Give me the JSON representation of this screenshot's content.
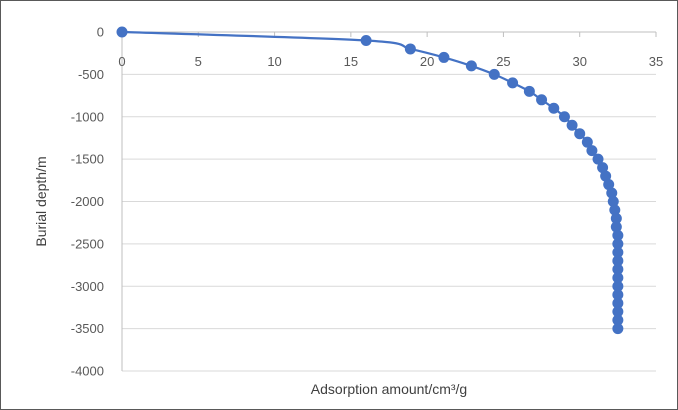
{
  "chart_data": {
    "type": "scatter",
    "subtype": "scatter-with-smooth-lines-and-markers",
    "xlabel": "Adsorption amount/cm³/g",
    "ylabel": "Burial depth/m",
    "xlim": [
      0,
      35
    ],
    "ylim": [
      -4000,
      0
    ],
    "x_ticks": [
      0,
      5,
      10,
      15,
      20,
      25,
      30,
      35
    ],
    "y_ticks": [
      0,
      -500,
      -1000,
      -1500,
      -2000,
      -2500,
      -3000,
      -3500,
      -4000
    ],
    "x_axis_position": "top (crosses at y = 0)",
    "grid": "horizontal major gridlines",
    "legend": "none",
    "colors": {
      "series": "#4472C4",
      "grid": "#D9D9D9",
      "axis": "#BFBFBF",
      "text": "#595959",
      "border": "#595959"
    },
    "series": [
      {
        "x": [
          0.0,
          16.0,
          18.9,
          21.1,
          22.9,
          24.4,
          25.6,
          26.7,
          27.5,
          28.3,
          29.0,
          29.5,
          30.0,
          30.5,
          30.8,
          31.2,
          31.5,
          31.7,
          31.9,
          32.1,
          32.2,
          32.3,
          32.4,
          32.4,
          32.5,
          32.5,
          32.5,
          32.5,
          32.5,
          32.5,
          32.5,
          32.5,
          32.5,
          32.5,
          32.5,
          32.5
        ],
        "y": [
          0,
          -100,
          -200,
          -300,
          -400,
          -500,
          -600,
          -700,
          -800,
          -900,
          -1000,
          -1100,
          -1200,
          -1300,
          -1400,
          -1500,
          -1600,
          -1700,
          -1800,
          -1900,
          -2000,
          -2100,
          -2200,
          -2300,
          -2400,
          -2500,
          -2600,
          -2700,
          -2800,
          -2900,
          -3000,
          -3100,
          -3200,
          -3300,
          -3400,
          -3500
        ]
      }
    ]
  }
}
